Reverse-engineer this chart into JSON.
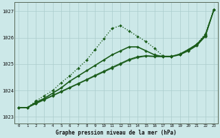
{
  "title": "Graphe pression niveau de la mer (hPa)",
  "background_color": "#cce8e8",
  "grid_color": "#aacccc",
  "line_color": "#1a5c1a",
  "xlim": [
    -0.5,
    23.5
  ],
  "ylim": [
    1022.75,
    1027.35
  ],
  "yticks": [
    1023,
    1024,
    1025,
    1026,
    1027
  ],
  "xticks": [
    0,
    1,
    2,
    3,
    4,
    5,
    6,
    7,
    8,
    9,
    10,
    11,
    12,
    13,
    14,
    15,
    16,
    17,
    18,
    19,
    20,
    21,
    22,
    23
  ],
  "series": [
    {
      "x": [
        0,
        1,
        2,
        3,
        4,
        5,
        6,
        7,
        8,
        9,
        10,
        11,
        12,
        13,
        14,
        15,
        16,
        17,
        18,
        19,
        20,
        21,
        22,
        23
      ],
      "y": [
        1023.35,
        1023.35,
        1023.6,
        1023.8,
        1024.0,
        1024.3,
        1024.55,
        1024.85,
        1025.15,
        1025.55,
        1025.95,
        1026.35,
        1026.45,
        1026.25,
        1026.05,
        1025.85,
        1025.6,
        1025.3,
        1025.28,
        1025.35,
        1025.55,
        1025.75,
        1026.15,
        1027.05
      ],
      "style": ":",
      "marker": "D",
      "markersize": 2.0,
      "linewidth": 1.0
    },
    {
      "x": [
        0,
        1,
        2,
        3,
        4,
        5,
        6,
        7,
        8,
        9,
        10,
        11,
        12,
        13,
        14,
        15,
        16,
        17,
        18,
        19,
        20,
        21,
        22,
        23
      ],
      "y": [
        1023.35,
        1023.35,
        1023.55,
        1023.7,
        1023.9,
        1024.1,
        1024.35,
        1024.55,
        1024.75,
        1024.95,
        1025.15,
        1025.35,
        1025.5,
        1025.65,
        1025.65,
        1025.5,
        1025.35,
        1025.28,
        1025.28,
        1025.38,
        1025.55,
        1025.75,
        1026.1,
        1027.05
      ],
      "style": "-",
      "marker": "D",
      "markersize": 2.0,
      "linewidth": 1.2
    },
    {
      "x": [
        0,
        1,
        2,
        3,
        4,
        5,
        6,
        7,
        8,
        9,
        10,
        11,
        12,
        13,
        14,
        15,
        16,
        17,
        18,
        19,
        20,
        21,
        22,
        23
      ],
      "y": [
        1023.35,
        1023.35,
        1023.5,
        1023.65,
        1023.8,
        1023.95,
        1024.1,
        1024.25,
        1024.4,
        1024.55,
        1024.7,
        1024.85,
        1025.0,
        1025.15,
        1025.25,
        1025.3,
        1025.28,
        1025.28,
        1025.28,
        1025.35,
        1025.5,
        1025.7,
        1026.05,
        1027.05
      ],
      "style": "-",
      "marker": "D",
      "markersize": 2.0,
      "linewidth": 1.0
    },
    {
      "x": [
        0,
        1,
        2,
        3,
        4,
        5,
        6,
        7,
        8,
        9,
        10,
        11,
        12,
        13,
        14,
        15,
        16,
        17,
        18,
        19,
        20,
        21,
        22,
        23
      ],
      "y": [
        1023.35,
        1023.35,
        1023.52,
        1023.67,
        1023.82,
        1023.97,
        1024.12,
        1024.27,
        1024.42,
        1024.58,
        1024.73,
        1024.88,
        1025.03,
        1025.18,
        1025.28,
        1025.32,
        1025.3,
        1025.3,
        1025.3,
        1025.37,
        1025.52,
        1025.72,
        1026.07,
        1027.05
      ],
      "style": "-",
      "marker": "D",
      "markersize": 2.0,
      "linewidth": 0.8
    }
  ]
}
